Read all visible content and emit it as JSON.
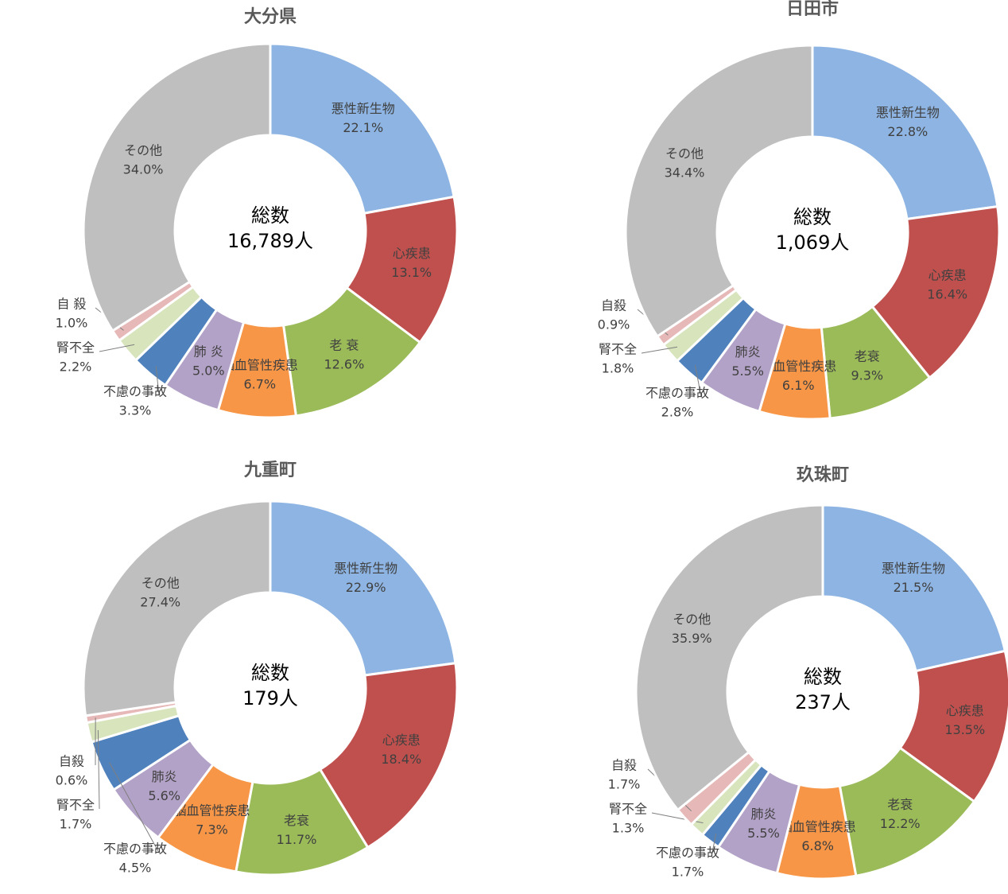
{
  "chart_data": [
    {
      "type": "pie",
      "title": "大分県",
      "center_title": "総数",
      "center_total": "16,789人",
      "categories": [
        "悪性新生物",
        "心疾患",
        "老 衰",
        "脳血管性疾患",
        "肺 炎",
        "不慮の事故",
        "腎不全",
        "自 殺",
        "その他"
      ],
      "values": [
        22.1,
        13.1,
        12.6,
        6.7,
        5.0,
        3.3,
        2.2,
        1.0,
        34.0
      ],
      "value_labels": [
        "22.1%",
        "13.1%",
        "12.6%",
        "6.7%",
        "5.0%",
        "3.3%",
        "2.2%",
        "1.0%",
        "34.0%"
      ],
      "colors": [
        "#8db4e2",
        "#c0504d",
        "#9bbb59",
        "#f79646",
        "#b3a2c7",
        "#4f81bd",
        "#d7e4bc",
        "#e6b9b8",
        "#bfbfbf"
      ]
    },
    {
      "type": "pie",
      "title": "日田市",
      "center_title": "総数",
      "center_total": "1,069人",
      "categories": [
        "悪性新生物",
        "心疾患",
        "老衰",
        "脳血管性疾患",
        "肺炎",
        "不慮の事故",
        "腎不全",
        "自殺",
        "その他"
      ],
      "values": [
        22.8,
        16.4,
        9.3,
        6.1,
        5.5,
        2.8,
        1.8,
        0.9,
        34.4
      ],
      "value_labels": [
        "22.8%",
        "16.4%",
        "9.3%",
        "6.1%",
        "5.5%",
        "2.8%",
        "1.8%",
        "0.9%",
        "34.4%"
      ],
      "colors": [
        "#8db4e2",
        "#c0504d",
        "#9bbb59",
        "#f79646",
        "#b3a2c7",
        "#4f81bd",
        "#d7e4bc",
        "#e6b9b8",
        "#bfbfbf"
      ]
    },
    {
      "type": "pie",
      "title": "九重町",
      "center_title": "総数",
      "center_total": "179人",
      "categories": [
        "悪性新生物",
        "心疾患",
        "老衰",
        "脳血管性疾患",
        "肺炎",
        "不慮の事故",
        "腎不全",
        "自殺",
        "その他"
      ],
      "values": [
        22.9,
        18.4,
        11.7,
        7.3,
        5.6,
        4.5,
        1.7,
        0.6,
        27.4
      ],
      "value_labels": [
        "22.9%",
        "18.4%",
        "11.7%",
        "7.3%",
        "5.6%",
        "4.5%",
        "1.7%",
        "0.6%",
        "27.4%"
      ],
      "colors": [
        "#8db4e2",
        "#c0504d",
        "#9bbb59",
        "#f79646",
        "#b3a2c7",
        "#4f81bd",
        "#d7e4bc",
        "#e6b9b8",
        "#bfbfbf"
      ]
    },
    {
      "type": "pie",
      "title": "玖珠町",
      "center_title": "総数",
      "center_total": "237人",
      "categories": [
        "悪性新生物",
        "心疾患",
        "老衰",
        "脳血管性疾患",
        "肺炎",
        "不慮の事故",
        "腎不全",
        "自殺",
        "その他"
      ],
      "values": [
        21.5,
        13.5,
        12.2,
        6.8,
        5.5,
        1.7,
        1.3,
        1.7,
        35.9
      ],
      "value_labels": [
        "21.5%",
        "13.5%",
        "12.2%",
        "6.8%",
        "5.5%",
        "1.7%",
        "1.3%",
        "1.7%",
        "35.9%"
      ],
      "colors": [
        "#8db4e2",
        "#c0504d",
        "#9bbb59",
        "#f79646",
        "#b3a2c7",
        "#4f81bd",
        "#d7e4bc",
        "#e6b9b8",
        "#bfbfbf"
      ]
    }
  ]
}
